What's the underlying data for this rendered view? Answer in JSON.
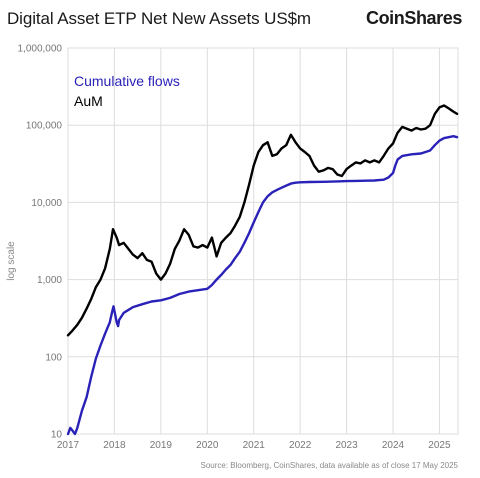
{
  "header": {
    "title": "Digital Asset ETP Net New Assets US$m",
    "brand": "CoinShares"
  },
  "footer": {
    "source": "Source: Bloomberg, CoinShares, data available as of close 17 May 2025"
  },
  "colors": {
    "cumulative": "#2a22b8",
    "aum": "#000000",
    "grid": "#dddddd",
    "axis_text": "#777777"
  },
  "chart_data": {
    "type": "line",
    "title": "Digital Asset ETP Net New Assets US$m",
    "ylabel": "log scale",
    "yscale": "log",
    "ylim": [
      10,
      1000000
    ],
    "xlim": [
      2017.0,
      2025.4
    ],
    "grid": true,
    "legend_position": "top-left",
    "y_ticks": [
      10,
      100,
      1000,
      10000,
      100000,
      1000000
    ],
    "y_tick_labels": [
      "10",
      "100",
      "1,000",
      "10,000",
      "100,000",
      "1,000,000"
    ],
    "x_ticks": [
      2017,
      2018,
      2019,
      2020,
      2021,
      2022,
      2023,
      2024,
      2025
    ],
    "x_tick_labels": [
      "2017",
      "2018",
      "2019",
      "2020",
      "2021",
      "2022",
      "2023",
      "2024",
      "2025"
    ],
    "series": [
      {
        "name": "Cumulative flows",
        "color": "#2a22b8",
        "points": [
          [
            2017.0,
            10
          ],
          [
            2017.05,
            12
          ],
          [
            2017.1,
            11
          ],
          [
            2017.15,
            10
          ],
          [
            2017.2,
            12
          ],
          [
            2017.3,
            20
          ],
          [
            2017.4,
            30
          ],
          [
            2017.5,
            55
          ],
          [
            2017.6,
            95
          ],
          [
            2017.7,
            140
          ],
          [
            2017.8,
            200
          ],
          [
            2017.9,
            280
          ],
          [
            2017.95,
            380
          ],
          [
            2017.98,
            450
          ],
          [
            2018.02,
            340
          ],
          [
            2018.05,
            280
          ],
          [
            2018.08,
            250
          ],
          [
            2018.1,
            300
          ],
          [
            2018.2,
            370
          ],
          [
            2018.4,
            440
          ],
          [
            2018.6,
            480
          ],
          [
            2018.8,
            520
          ],
          [
            2019.0,
            540
          ],
          [
            2019.2,
            580
          ],
          [
            2019.4,
            650
          ],
          [
            2019.6,
            700
          ],
          [
            2019.8,
            730
          ],
          [
            2020.0,
            760
          ],
          [
            2020.1,
            850
          ],
          [
            2020.2,
            1000
          ],
          [
            2020.3,
            1150
          ],
          [
            2020.4,
            1350
          ],
          [
            2020.5,
            1550
          ],
          [
            2020.6,
            1900
          ],
          [
            2020.7,
            2300
          ],
          [
            2020.8,
            3000
          ],
          [
            2020.9,
            4000
          ],
          [
            2021.0,
            5500
          ],
          [
            2021.1,
            7500
          ],
          [
            2021.2,
            10000
          ],
          [
            2021.3,
            12000
          ],
          [
            2021.4,
            13500
          ],
          [
            2021.5,
            14500
          ],
          [
            2021.6,
            15500
          ],
          [
            2021.7,
            16500
          ],
          [
            2021.8,
            17500
          ],
          [
            2021.9,
            18000
          ],
          [
            2022.0,
            18200
          ],
          [
            2022.2,
            18400
          ],
          [
            2022.5,
            18500
          ],
          [
            2022.8,
            18700
          ],
          [
            2023.0,
            18900
          ],
          [
            2023.2,
            19000
          ],
          [
            2023.4,
            19100
          ],
          [
            2023.6,
            19200
          ],
          [
            2023.8,
            19700
          ],
          [
            2023.9,
            21000
          ],
          [
            2024.0,
            24000
          ],
          [
            2024.05,
            30000
          ],
          [
            2024.1,
            36000
          ],
          [
            2024.2,
            40000
          ],
          [
            2024.4,
            42000
          ],
          [
            2024.6,
            43000
          ],
          [
            2024.8,
            47000
          ],
          [
            2024.9,
            55000
          ],
          [
            2025.0,
            63000
          ],
          [
            2025.1,
            68000
          ],
          [
            2025.2,
            70000
          ],
          [
            2025.3,
            72000
          ],
          [
            2025.38,
            70000
          ]
        ]
      },
      {
        "name": "AuM",
        "color": "#000000",
        "points": [
          [
            2017.0,
            190
          ],
          [
            2017.1,
            220
          ],
          [
            2017.2,
            260
          ],
          [
            2017.3,
            320
          ],
          [
            2017.4,
            420
          ],
          [
            2017.5,
            560
          ],
          [
            2017.6,
            800
          ],
          [
            2017.7,
            1000
          ],
          [
            2017.8,
            1400
          ],
          [
            2017.9,
            2500
          ],
          [
            2017.97,
            4500
          ],
          [
            2018.05,
            3500
          ],
          [
            2018.1,
            2800
          ],
          [
            2018.2,
            3000
          ],
          [
            2018.3,
            2500
          ],
          [
            2018.4,
            2100
          ],
          [
            2018.5,
            1900
          ],
          [
            2018.6,
            2200
          ],
          [
            2018.7,
            1800
          ],
          [
            2018.8,
            1700
          ],
          [
            2018.9,
            1200
          ],
          [
            2019.0,
            1000
          ],
          [
            2019.1,
            1200
          ],
          [
            2019.2,
            1600
          ],
          [
            2019.3,
            2500
          ],
          [
            2019.4,
            3200
          ],
          [
            2019.5,
            4500
          ],
          [
            2019.6,
            3800
          ],
          [
            2019.7,
            2700
          ],
          [
            2019.8,
            2600
          ],
          [
            2019.9,
            2800
          ],
          [
            2020.0,
            2600
          ],
          [
            2020.1,
            3500
          ],
          [
            2020.2,
            2000
          ],
          [
            2020.3,
            3000
          ],
          [
            2020.4,
            3500
          ],
          [
            2020.5,
            4000
          ],
          [
            2020.6,
            5000
          ],
          [
            2020.7,
            6500
          ],
          [
            2020.8,
            10000
          ],
          [
            2020.9,
            17000
          ],
          [
            2021.0,
            30000
          ],
          [
            2021.1,
            45000
          ],
          [
            2021.2,
            55000
          ],
          [
            2021.3,
            60000
          ],
          [
            2021.4,
            40000
          ],
          [
            2021.5,
            42000
          ],
          [
            2021.6,
            50000
          ],
          [
            2021.7,
            55000
          ],
          [
            2021.8,
            75000
          ],
          [
            2021.9,
            60000
          ],
          [
            2022.0,
            50000
          ],
          [
            2022.1,
            45000
          ],
          [
            2022.2,
            40000
          ],
          [
            2022.3,
            30000
          ],
          [
            2022.4,
            25000
          ],
          [
            2022.5,
            26000
          ],
          [
            2022.6,
            28000
          ],
          [
            2022.7,
            27000
          ],
          [
            2022.8,
            23000
          ],
          [
            2022.9,
            22000
          ],
          [
            2023.0,
            27000
          ],
          [
            2023.1,
            30000
          ],
          [
            2023.2,
            33000
          ],
          [
            2023.3,
            32000
          ],
          [
            2023.4,
            35000
          ],
          [
            2023.5,
            33000
          ],
          [
            2023.6,
            35000
          ],
          [
            2023.7,
            33000
          ],
          [
            2023.8,
            40000
          ],
          [
            2023.9,
            50000
          ],
          [
            2024.0,
            58000
          ],
          [
            2024.1,
            80000
          ],
          [
            2024.2,
            95000
          ],
          [
            2024.3,
            90000
          ],
          [
            2024.4,
            85000
          ],
          [
            2024.5,
            92000
          ],
          [
            2024.6,
            88000
          ],
          [
            2024.7,
            90000
          ],
          [
            2024.8,
            100000
          ],
          [
            2024.9,
            140000
          ],
          [
            2025.0,
            170000
          ],
          [
            2025.1,
            180000
          ],
          [
            2025.2,
            165000
          ],
          [
            2025.3,
            150000
          ],
          [
            2025.38,
            140000
          ]
        ]
      }
    ]
  }
}
